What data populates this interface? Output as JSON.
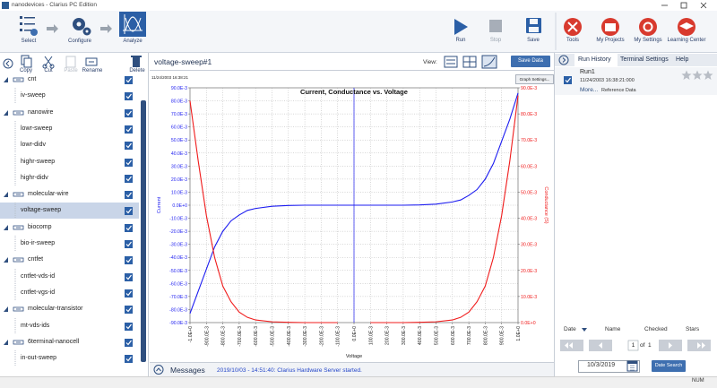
{
  "window": {
    "title": "nanodevices - Clarius PC Edition"
  },
  "toolbar": {
    "steps": [
      "Select",
      "Configure",
      "Analyze"
    ],
    "actions": [
      "Run",
      "Stop",
      "Save"
    ],
    "tools": [
      "Tools",
      "My Projects",
      "My Settings",
      "Learning Center"
    ]
  },
  "project": {
    "tools": [
      "Copy",
      "Cut",
      "Paste",
      "Rename",
      "Delete"
    ],
    "groups": [
      {
        "label": "cnt",
        "tests": [
          "iv-sweep"
        ]
      },
      {
        "label": "nanowire",
        "tests": [
          "lowr-sweep",
          "lowr-didv",
          "highr-sweep",
          "highr-didv"
        ]
      },
      {
        "label": "molecular-wire",
        "tests": [
          "voltage-sweep"
        ]
      },
      {
        "label": "biocomp",
        "tests": [
          "bio-ir-sweep"
        ]
      },
      {
        "label": "cntfet",
        "tests": [
          "cntfet-vds-id",
          "cntfet-vgs-id"
        ]
      },
      {
        "label": "molecular-transistor",
        "tests": [
          "mt-vds-ids"
        ]
      },
      {
        "label": "6terminal-nanocell",
        "tests": [
          "in-out-sweep"
        ]
      }
    ]
  },
  "test": {
    "name": "voltage-sweep#1",
    "view_label": "View:",
    "save_button": "Save Data",
    "graph_settings": "Graph Settings..."
  },
  "chart_data": {
    "type": "line",
    "title": "Current, Conductance vs. Voltage",
    "timestamp": "11/24/2003 16:38:21",
    "xlabel": "Voltage",
    "x": [
      -1,
      -0.95,
      -0.9,
      -0.85,
      -0.8,
      -0.75,
      -0.7,
      -0.65,
      -0.6,
      -0.5,
      -0.4,
      -0.3,
      -0.2,
      -0.1,
      0,
      0.1,
      0.2,
      0.3,
      0.4,
      0.5,
      0.6,
      0.65,
      0.7,
      0.75,
      0.8,
      0.85,
      0.9,
      0.95,
      1
    ],
    "series": [
      {
        "name": "Current",
        "color": "#1c1cf0",
        "values": [
          -0.083,
          -0.066,
          -0.049,
          -0.032,
          -0.02,
          -0.012,
          -0.0075,
          -0.004,
          -0.0025,
          -0.0008,
          -0.0002,
          0,
          0,
          0,
          0,
          0,
          0,
          0,
          0.0002,
          0.0008,
          0.0025,
          0.004,
          0.0075,
          0.012,
          0.02,
          0.032,
          0.049,
          0.066,
          0.086
        ]
      },
      {
        "name": "Conductance (S)",
        "color": "#f01c1c",
        "axis": "y2",
        "values": [
          0.085,
          0.062,
          0.041,
          0.025,
          0.014,
          0.008,
          0.004,
          0.002,
          0.001,
          0.0003,
          0.0001,
          0,
          0,
          0,
          null,
          0,
          0,
          0,
          0.0001,
          0.0003,
          0.001,
          0.002,
          0.004,
          0.008,
          0.014,
          0.025,
          0.041,
          0.062,
          0.087
        ]
      }
    ],
    "xlim": [
      -1,
      1
    ],
    "xticks": [
      {
        "value": -1,
        "label": "-1.0E+0"
      },
      {
        "value": -0.9,
        "label": "-900.0E-3"
      },
      {
        "value": -0.8,
        "label": "-800.0E-3"
      },
      {
        "value": -0.7,
        "label": "-700.0E-3"
      },
      {
        "value": -0.6,
        "label": "-600.0E-3"
      },
      {
        "value": -0.5,
        "label": "-500.0E-3"
      },
      {
        "value": -0.4,
        "label": "-400.0E-3"
      },
      {
        "value": -0.3,
        "label": "-300.0E-3"
      },
      {
        "value": -0.2,
        "label": "-200.0E-3"
      },
      {
        "value": -0.1,
        "label": "-100.0E-3"
      },
      {
        "value": 0,
        "label": "0.0E+0"
      },
      {
        "value": 0.1,
        "label": "100.0E-3"
      },
      {
        "value": 0.2,
        "label": "200.0E-3"
      },
      {
        "value": 0.3,
        "label": "300.0E-3"
      },
      {
        "value": 0.4,
        "label": "400.0E-3"
      },
      {
        "value": 0.5,
        "label": "500.0E-3"
      },
      {
        "value": 0.6,
        "label": "600.0E-3"
      },
      {
        "value": 0.7,
        "label": "700.0E-3"
      },
      {
        "value": 0.8,
        "label": "800.0E-3"
      },
      {
        "value": 0.9,
        "label": "900.0E-3"
      },
      {
        "value": 1,
        "label": "1.0E+0"
      }
    ],
    "ylim": [
      -0.09,
      0.09
    ],
    "yticks": [
      {
        "value": -0.09,
        "label": "-90.0E-3"
      },
      {
        "value": -0.08,
        "label": "-80.0E-3"
      },
      {
        "value": -0.07,
        "label": "-70.0E-3"
      },
      {
        "value": -0.06,
        "label": "-60.0E-3"
      },
      {
        "value": -0.05,
        "label": "-50.0E-3"
      },
      {
        "value": -0.04,
        "label": "-40.0E-3"
      },
      {
        "value": -0.03,
        "label": "-30.0E-3"
      },
      {
        "value": -0.02,
        "label": "-20.0E-3"
      },
      {
        "value": -0.01,
        "label": "-10.0E-3"
      },
      {
        "value": 0,
        "label": "0.0E+0"
      },
      {
        "value": 0.01,
        "label": "10.0E-3"
      },
      {
        "value": 0.02,
        "label": "20.0E-3"
      },
      {
        "value": 0.03,
        "label": "30.0E-3"
      },
      {
        "value": 0.04,
        "label": "40.0E-3"
      },
      {
        "value": 0.05,
        "label": "50.0E-3"
      },
      {
        "value": 0.06,
        "label": "60.0E-3"
      },
      {
        "value": 0.07,
        "label": "70.0E-3"
      },
      {
        "value": 0.08,
        "label": "80.0E-3"
      },
      {
        "value": 0.09,
        "label": "90.0E-3"
      }
    ],
    "y2lim": [
      0,
      0.09
    ],
    "y2ticks": [
      {
        "value": 0,
        "label": "0.0E+0"
      },
      {
        "value": 0.01,
        "label": "10.0E-3"
      },
      {
        "value": 0.02,
        "label": "20.0E-3"
      },
      {
        "value": 0.03,
        "label": "30.0E-3"
      },
      {
        "value": 0.04,
        "label": "40.0E-3"
      },
      {
        "value": 0.05,
        "label": "50.0E-3"
      },
      {
        "value": 0.06,
        "label": "60.0E-3"
      },
      {
        "value": 0.07,
        "label": "70.0E-3"
      },
      {
        "value": 0.08,
        "label": "80.0E-3"
      },
      {
        "value": 0.09,
        "label": "90.0E-3"
      }
    ],
    "grid": true
  },
  "messages": {
    "title": "Messages",
    "text": "2019/10/03 - 14:51:40: Clarius Hardware Server started."
  },
  "history": {
    "tabs": [
      "Run History",
      "Terminal Settings",
      "Help"
    ],
    "runs": [
      {
        "name": "Run1",
        "date": "11/24/2003 16:38:21:000",
        "more": "More...",
        "note": "Reference Data"
      }
    ],
    "columns": [
      "Date",
      "Name",
      "Checked",
      "Stars"
    ],
    "page": 1,
    "of": "of",
    "pages": 1,
    "date": "10/3/2019",
    "search": "Date Search"
  },
  "status": "NUM"
}
